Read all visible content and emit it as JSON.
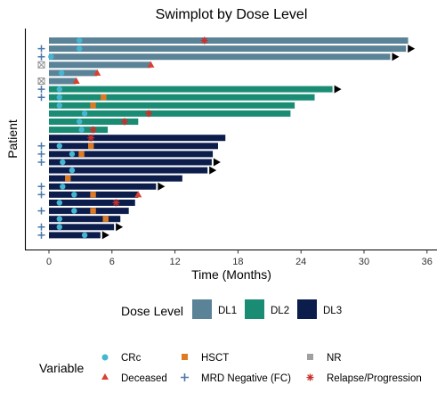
{
  "chart_data": {
    "type": "bar",
    "orientation": "horizontal",
    "title": "Swimplot by Dose Level",
    "xlabel": "Time (Months)",
    "ylabel": "Patient",
    "xlim": [
      -2,
      36.5
    ],
    "xticks": [
      0,
      6,
      12,
      18,
      24,
      30,
      36
    ],
    "grid": false,
    "dose_legend": {
      "title": "Dose Level",
      "levels": [
        {
          "name": "DL1",
          "color": "#5b8397"
        },
        {
          "name": "DL2",
          "color": "#1a8c74"
        },
        {
          "name": "DL3",
          "color": "#0c1d4c"
        }
      ]
    },
    "variable_legend": {
      "title": "Variable",
      "items": [
        {
          "name": "CRc",
          "marker": "circle",
          "color": "#45b6d2"
        },
        {
          "name": "Deceased",
          "marker": "triangle",
          "color": "#d9412e"
        },
        {
          "name": "HSCT",
          "marker": "square",
          "color": "#e07a22"
        },
        {
          "name": "MRD Negative (FC)",
          "marker": "plus",
          "color": "#4a78a8"
        },
        {
          "name": "NR",
          "marker": "boxed-x",
          "color": "#a0a0a0"
        },
        {
          "name": "Relapse/Progression",
          "marker": "asterisk",
          "color": "#c9302c"
        }
      ]
    },
    "patients": [
      {
        "dose": "DL1",
        "duration": 34.2,
        "arrow": false,
        "mrd": false,
        "nr": false,
        "events": [
          {
            "type": "CRc",
            "t": 2.9
          },
          {
            "type": "Relapse/Progression",
            "t": 14.8
          }
        ]
      },
      {
        "dose": "DL1",
        "duration": 34.0,
        "arrow": true,
        "mrd": true,
        "nr": false,
        "events": [
          {
            "type": "CRc",
            "t": 2.9
          }
        ]
      },
      {
        "dose": "DL1",
        "duration": 32.5,
        "arrow": true,
        "mrd": true,
        "nr": false,
        "events": [
          {
            "type": "CRc",
            "t": 0.2
          }
        ]
      },
      {
        "dose": "DL1",
        "duration": 9.7,
        "arrow": false,
        "mrd": false,
        "nr": true,
        "events": [
          {
            "type": "Deceased",
            "t": 9.7
          }
        ]
      },
      {
        "dose": "DL1",
        "duration": 4.6,
        "arrow": false,
        "mrd": false,
        "nr": false,
        "events": [
          {
            "type": "CRc",
            "t": 1.2
          },
          {
            "type": "Deceased",
            "t": 4.6
          }
        ]
      },
      {
        "dose": "DL1",
        "duration": 2.6,
        "arrow": false,
        "mrd": false,
        "nr": true,
        "events": [
          {
            "type": "Deceased",
            "t": 2.6
          }
        ]
      },
      {
        "dose": "DL2",
        "duration": 27.0,
        "arrow": true,
        "mrd": true,
        "nr": false,
        "events": [
          {
            "type": "CRc",
            "t": 1.0
          }
        ]
      },
      {
        "dose": "DL2",
        "duration": 25.3,
        "arrow": false,
        "mrd": true,
        "nr": false,
        "events": [
          {
            "type": "CRc",
            "t": 1.0
          },
          {
            "type": "HSCT",
            "t": 5.2
          }
        ]
      },
      {
        "dose": "DL2",
        "duration": 23.4,
        "arrow": false,
        "mrd": false,
        "nr": false,
        "events": [
          {
            "type": "CRc",
            "t": 1.0
          },
          {
            "type": "HSCT",
            "t": 4.2
          }
        ]
      },
      {
        "dose": "DL2",
        "duration": 23.0,
        "arrow": false,
        "mrd": false,
        "nr": false,
        "events": [
          {
            "type": "CRc",
            "t": 3.4
          },
          {
            "type": "Relapse/Progression",
            "t": 9.5
          }
        ]
      },
      {
        "dose": "DL2",
        "duration": 8.5,
        "arrow": false,
        "mrd": false,
        "nr": false,
        "events": [
          {
            "type": "CRc",
            "t": 2.9
          },
          {
            "type": "Relapse/Progression",
            "t": 7.2
          }
        ]
      },
      {
        "dose": "DL2",
        "duration": 5.6,
        "arrow": false,
        "mrd": false,
        "nr": false,
        "events": [
          {
            "type": "CRc",
            "t": 3.1
          },
          {
            "type": "Relapse/Progression",
            "t": 4.2
          }
        ]
      },
      {
        "dose": "DL3",
        "duration": 16.8,
        "arrow": false,
        "mrd": false,
        "nr": false,
        "events": [
          {
            "type": "Relapse/Progression",
            "t": 4.0
          }
        ]
      },
      {
        "dose": "DL3",
        "duration": 16.1,
        "arrow": false,
        "mrd": true,
        "nr": false,
        "events": [
          {
            "type": "CRc",
            "t": 1.0
          },
          {
            "type": "HSCT",
            "t": 4.0
          }
        ]
      },
      {
        "dose": "DL3",
        "duration": 15.6,
        "arrow": false,
        "mrd": true,
        "nr": false,
        "events": [
          {
            "type": "CRc",
            "t": 2.2
          },
          {
            "type": "HSCT",
            "t": 3.1
          }
        ]
      },
      {
        "dose": "DL3",
        "duration": 15.5,
        "arrow": true,
        "mrd": true,
        "nr": false,
        "events": [
          {
            "type": "CRc",
            "t": 1.3
          }
        ]
      },
      {
        "dose": "DL3",
        "duration": 15.1,
        "arrow": true,
        "mrd": false,
        "nr": false,
        "events": [
          {
            "type": "CRc",
            "t": 2.2
          }
        ]
      },
      {
        "dose": "DL3",
        "duration": 12.7,
        "arrow": false,
        "mrd": false,
        "nr": false,
        "events": [
          {
            "type": "HSCT",
            "t": 1.8
          }
        ]
      },
      {
        "dose": "DL3",
        "duration": 10.2,
        "arrow": true,
        "mrd": true,
        "nr": false,
        "events": [
          {
            "type": "CRc",
            "t": 1.3
          }
        ]
      },
      {
        "dose": "DL3",
        "duration": 8.5,
        "arrow": false,
        "mrd": true,
        "nr": false,
        "events": [
          {
            "type": "CRc",
            "t": 2.4
          },
          {
            "type": "HSCT",
            "t": 4.2
          },
          {
            "type": "Deceased",
            "t": 8.5
          }
        ]
      },
      {
        "dose": "DL3",
        "duration": 8.2,
        "arrow": false,
        "mrd": false,
        "nr": false,
        "events": [
          {
            "type": "CRc",
            "t": 1.0
          },
          {
            "type": "Relapse/Progression",
            "t": 6.4
          }
        ]
      },
      {
        "dose": "DL3",
        "duration": 7.6,
        "arrow": false,
        "mrd": true,
        "nr": false,
        "events": [
          {
            "type": "CRc",
            "t": 2.4
          },
          {
            "type": "HSCT",
            "t": 4.2
          }
        ]
      },
      {
        "dose": "DL3",
        "duration": 6.8,
        "arrow": false,
        "mrd": false,
        "nr": false,
        "events": [
          {
            "type": "CRc",
            "t": 1.0
          },
          {
            "type": "HSCT",
            "t": 5.4
          }
        ]
      },
      {
        "dose": "DL3",
        "duration": 6.2,
        "arrow": true,
        "mrd": true,
        "nr": false,
        "events": [
          {
            "type": "CRc",
            "t": 1.0
          }
        ]
      },
      {
        "dose": "DL3",
        "duration": 4.9,
        "arrow": true,
        "mrd": true,
        "nr": false,
        "events": [
          {
            "type": "CRc",
            "t": 3.4
          }
        ]
      }
    ]
  }
}
